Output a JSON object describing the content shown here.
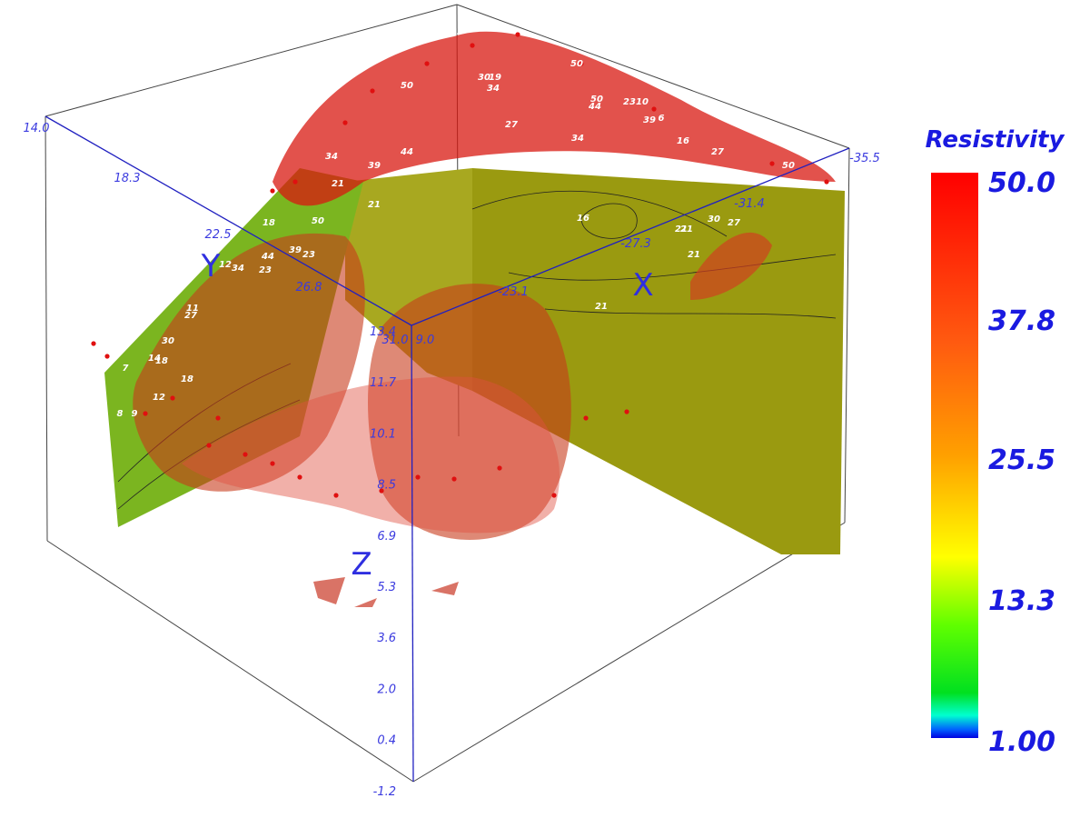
{
  "colorbar": {
    "title": "Resistivity",
    "ticks": [
      "50.0",
      "37.8",
      "25.5",
      "13.3",
      "1.00"
    ]
  },
  "axes": {
    "x": {
      "label": "X",
      "ticks": [
        "9.0",
        "-23.1",
        "-27.3",
        "-31.4",
        "-35.5"
      ]
    },
    "y": {
      "label": "Y",
      "ticks": [
        "14.0",
        "18.3",
        "22.5",
        "26.8",
        "31.0"
      ]
    },
    "z": {
      "label": "Z",
      "ticks": [
        "13.4",
        "11.7",
        "10.1",
        "8.5",
        "6.9",
        "5.3",
        "3.6",
        "2.0",
        "0.4",
        "-1.2"
      ]
    }
  },
  "contour_labels": [
    "27",
    "23",
    "50",
    "30",
    "19",
    "34",
    "50",
    "50",
    "44",
    "23",
    "10",
    "39",
    "6",
    "27",
    "34",
    "23",
    "44",
    "16",
    "27",
    "50",
    "34",
    "39",
    "44",
    "21",
    "21",
    "50",
    "18",
    "39",
    "23",
    "44",
    "23",
    "34",
    "12",
    "16",
    "21",
    "21",
    "30",
    "27",
    "21",
    "21",
    "30",
    "18",
    "14",
    "18",
    "12",
    "8",
    "9",
    "7",
    "27",
    "11"
  ]
}
